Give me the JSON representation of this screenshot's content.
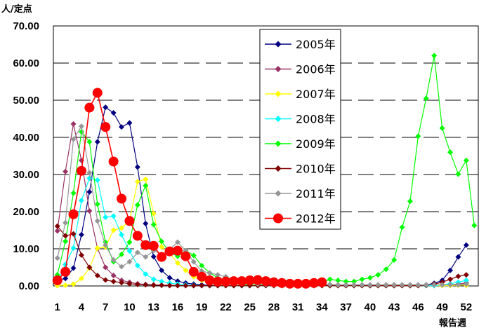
{
  "chart_data": {
    "type": "line",
    "ylabel": "人/定点",
    "xlabel": "報告週",
    "ylim": [
      0,
      70
    ],
    "xlim": [
      1,
      53
    ],
    "y_ticks": [
      "0.00",
      "10.00",
      "20.00",
      "30.00",
      "40.00",
      "50.00",
      "60.00",
      "70.00"
    ],
    "x_ticks": [
      1,
      4,
      7,
      10,
      13,
      16,
      19,
      22,
      25,
      28,
      31,
      34,
      37,
      40,
      43,
      46,
      49,
      52
    ],
    "grid": "horizontal dashed",
    "legend_position": "top-center",
    "series": [
      {
        "name": "2005年",
        "color": "#000080",
        "marker": "diamond",
        "x": [
          1,
          2,
          3,
          4,
          5,
          6,
          7,
          8,
          9,
          10,
          11,
          12,
          13,
          14,
          15,
          16,
          17,
          18,
          19,
          20,
          21,
          22,
          23,
          24,
          25,
          26,
          27,
          28,
          29,
          30,
          31,
          32,
          33,
          34,
          35,
          36,
          37,
          38,
          39,
          40,
          41,
          42,
          43,
          44,
          45,
          46,
          47,
          48,
          49,
          50,
          51,
          52
        ],
        "y": [
          1.5,
          2.0,
          4.8,
          13.8,
          25.3,
          38.8,
          48.1,
          46.6,
          42.8,
          43.9,
          32.0,
          16.8,
          7.9,
          4.2,
          2.2,
          1.3,
          0.8,
          0.5,
          0.3,
          0.2,
          0.1,
          0.1,
          0.1,
          0.1,
          0.1,
          0.1,
          0.1,
          0.1,
          0.1,
          0.1,
          0.1,
          0.1,
          0.1,
          0.1,
          0.1,
          0.1,
          0.1,
          0.1,
          0.1,
          0.1,
          0.1,
          0.1,
          0.1,
          0.1,
          0.1,
          0.2,
          0.3,
          0.7,
          1.5,
          4.2,
          7.8,
          11.0
        ]
      },
      {
        "name": "2006年",
        "color": "#993366",
        "marker": "diamond",
        "x": [
          1,
          2,
          3,
          4,
          5,
          6,
          7,
          8,
          9,
          10,
          11,
          12,
          13,
          14,
          15,
          16,
          17,
          18,
          19,
          20,
          21,
          22,
          23,
          24,
          25,
          26,
          27,
          28,
          29,
          30,
          31,
          32,
          33,
          34,
          35,
          36,
          37,
          38,
          39,
          40,
          41,
          42,
          43,
          44,
          45,
          46,
          47,
          48,
          49,
          50,
          51,
          52
        ],
        "y": [
          14.8,
          30.8,
          43.6,
          33.8,
          20.2,
          10.1,
          5.0,
          2.8,
          1.5,
          1.0,
          0.6,
          0.4,
          0.3,
          0.2,
          0.2,
          0.1,
          0.1,
          0.1,
          0.1,
          0.1,
          0.1,
          0.1,
          0.1,
          0.1,
          0.1,
          0.1,
          0.1,
          0.1,
          0.1,
          0.1,
          0.1,
          0.1,
          0.1,
          0.1,
          0.1,
          0.1,
          0.1,
          0.1,
          0.1,
          0.1,
          0.1,
          0.1,
          0.1,
          0.1,
          0.1,
          0.1,
          0.1,
          0.1,
          0.2,
          0.3,
          0.5,
          0.8
        ]
      },
      {
        "name": "2007年",
        "color": "#ffff00",
        "marker": "diamond",
        "x": [
          1,
          2,
          3,
          4,
          5,
          6,
          7,
          8,
          9,
          10,
          11,
          12,
          13,
          14,
          15,
          16,
          17,
          18,
          19,
          20,
          21,
          22,
          23,
          24,
          25,
          26,
          27,
          28,
          29,
          30,
          31,
          32,
          33,
          34,
          35,
          36,
          37,
          38,
          39,
          40,
          41,
          42,
          43,
          44,
          45,
          46,
          47,
          48,
          49,
          50,
          51,
          52
        ],
        "y": [
          0.1,
          0.2,
          0.5,
          2.0,
          4.8,
          10.2,
          10.5,
          15.0,
          15.6,
          17.6,
          28.1,
          28.7,
          19.5,
          10.5,
          8.8,
          6.2,
          4.2,
          2.5,
          1.5,
          0.8,
          0.4,
          0.2,
          0.1,
          0.1,
          0.1,
          0.1,
          0.1,
          0.1,
          0.1,
          0.1,
          0.1,
          0.1,
          0.1,
          0.1,
          0.1,
          0.1,
          0.1,
          0.1,
          0.1,
          0.1,
          0.1,
          0.1,
          0.1,
          0.1,
          0.1,
          0.1,
          0.1,
          0.1,
          0.1,
          0.1,
          0.2,
          0.2
        ]
      },
      {
        "name": "2008年",
        "color": "#00ffff",
        "marker": "diamond",
        "x": [
          1,
          2,
          3,
          4,
          5,
          6,
          7,
          8,
          9,
          10,
          11,
          12,
          13,
          14,
          15,
          16,
          17,
          18,
          19,
          20,
          21,
          22,
          23,
          24,
          25,
          26,
          27,
          28,
          29,
          30,
          31,
          32,
          33,
          34,
          35,
          36,
          37,
          38,
          39,
          40,
          41,
          42,
          43,
          44,
          45,
          46,
          47,
          48,
          49,
          50,
          51,
          52
        ],
        "y": [
          1.0,
          5.8,
          10.2,
          23.0,
          29.0,
          28.5,
          18.5,
          18.8,
          13.8,
          9.4,
          5.5,
          3.2,
          1.8,
          1.2,
          0.8,
          0.5,
          0.3,
          0.2,
          0.1,
          0.1,
          0.1,
          0.1,
          0.1,
          0.1,
          0.1,
          0.1,
          0.1,
          0.1,
          0.1,
          0.1,
          0.1,
          0.1,
          0.1,
          0.1,
          0.1,
          0.1,
          0.1,
          0.1,
          0.1,
          0.1,
          0.1,
          0.1,
          0.1,
          0.1,
          0.1,
          0.1,
          0.1,
          0.1,
          0.3,
          0.6,
          1.0,
          1.5
        ]
      },
      {
        "name": "2009年",
        "color": "#00ff00",
        "marker": "diamond",
        "x": [
          1,
          2,
          3,
          4,
          5,
          6,
          7,
          8,
          9,
          10,
          11,
          12,
          13,
          14,
          15,
          16,
          17,
          18,
          19,
          20,
          21,
          22,
          23,
          24,
          25,
          26,
          27,
          28,
          29,
          30,
          31,
          32,
          33,
          34,
          35,
          36,
          37,
          38,
          39,
          40,
          41,
          42,
          43,
          44,
          45,
          46,
          47,
          48,
          49,
          50,
          51,
          52,
          53
        ],
        "y": [
          3.0,
          12.0,
          25.0,
          41.5,
          38.8,
          22.0,
          11.8,
          6.5,
          8.5,
          11.8,
          21.8,
          27.0,
          16.5,
          12.0,
          9.0,
          8.0,
          9.5,
          8.2,
          5.5,
          3.5,
          2.2,
          1.5,
          1.0,
          0.5,
          0.3,
          0.2,
          0.2,
          0.2,
          0.2,
          0.2,
          0.3,
          0.3,
          0.5,
          0.8,
          1.8,
          1.5,
          1.2,
          1.2,
          1.8,
          2.2,
          3.0,
          4.5,
          7.0,
          15.8,
          22.8,
          40.3,
          50.5,
          62.0,
          42.5,
          36.0,
          30.1,
          33.8,
          16.3
        ]
      },
      {
        "name": "2010年",
        "color": "#800000",
        "marker": "diamond",
        "x": [
          1,
          2,
          3,
          4,
          5,
          6,
          7,
          8,
          9,
          10,
          11,
          12,
          13,
          14,
          15,
          16,
          17,
          18,
          19,
          20,
          21,
          22,
          23,
          24,
          25,
          26,
          27,
          28,
          29,
          30,
          31,
          32,
          33,
          34,
          35,
          36,
          37,
          38,
          39,
          40,
          41,
          42,
          43,
          44,
          45,
          46,
          47,
          48,
          49,
          50,
          51,
          52
        ],
        "y": [
          16.1,
          13.5,
          14.0,
          8.3,
          5.0,
          2.8,
          1.6,
          1.2,
          0.9,
          0.6,
          0.4,
          0.3,
          0.2,
          0.2,
          0.1,
          0.1,
          0.1,
          0.1,
          0.1,
          0.1,
          0.1,
          0.1,
          0.1,
          0.1,
          0.1,
          0.1,
          0.1,
          0.1,
          0.1,
          0.1,
          0.1,
          0.1,
          0.1,
          0.1,
          0.1,
          0.1,
          0.1,
          0.1,
          0.1,
          0.1,
          0.1,
          0.1,
          0.1,
          0.1,
          0.1,
          0.1,
          0.2,
          0.5,
          1.0,
          1.8,
          2.6,
          3.0
        ]
      },
      {
        "name": "2011年",
        "color": "#969696",
        "marker": "diamond",
        "x": [
          1,
          2,
          3,
          4,
          5,
          6,
          7,
          8,
          9,
          10,
          11,
          12,
          13,
          14,
          15,
          16,
          17,
          18,
          19,
          20,
          21,
          22,
          23,
          24,
          25,
          26,
          27,
          28,
          29,
          30,
          31,
          32,
          33,
          34,
          35,
          36,
          37,
          38,
          39,
          40,
          41,
          42,
          43,
          44,
          45,
          46,
          47,
          48,
          49,
          50,
          51,
          52
        ],
        "y": [
          7.5,
          17.0,
          39.5,
          43.0,
          30.5,
          17.5,
          11.0,
          7.0,
          5.2,
          6.5,
          9.0,
          7.8,
          9.5,
          8.5,
          9.8,
          11.8,
          9.5,
          6.5,
          4.0,
          3.5,
          3.0,
          2.5,
          1.5,
          1.0,
          0.8,
          0.5,
          0.4,
          0.3,
          0.3,
          0.3,
          0.3,
          0.3,
          0.3,
          0.4,
          0.4,
          0.3,
          0.3,
          0.3,
          0.3,
          0.3,
          0.3,
          0.3,
          0.3,
          0.3,
          0.3,
          0.3,
          0.3,
          0.3,
          0.3,
          0.3,
          0.3,
          0.5
        ]
      },
      {
        "name": "2012年",
        "color": "#ff0000",
        "marker": "circle",
        "x": [
          1,
          2,
          3,
          4,
          5,
          6,
          7,
          8,
          9,
          10,
          11,
          12,
          13,
          14,
          15,
          16,
          17,
          18,
          19,
          20,
          21,
          22,
          23,
          24,
          25,
          26,
          27,
          28,
          29,
          30,
          31,
          32,
          33,
          34
        ],
        "y": [
          1.5,
          3.8,
          19.3,
          31.0,
          48.0,
          52.0,
          42.8,
          33.5,
          23.5,
          17.5,
          13.5,
          11.0,
          10.8,
          7.8,
          9.3,
          9.5,
          8.0,
          3.8,
          2.5,
          1.5,
          1.2,
          1.2,
          1.3,
          1.3,
          1.5,
          1.6,
          1.3,
          1.0,
          0.8,
          0.6,
          0.6,
          0.6,
          0.8,
          1.0
        ]
      }
    ]
  }
}
